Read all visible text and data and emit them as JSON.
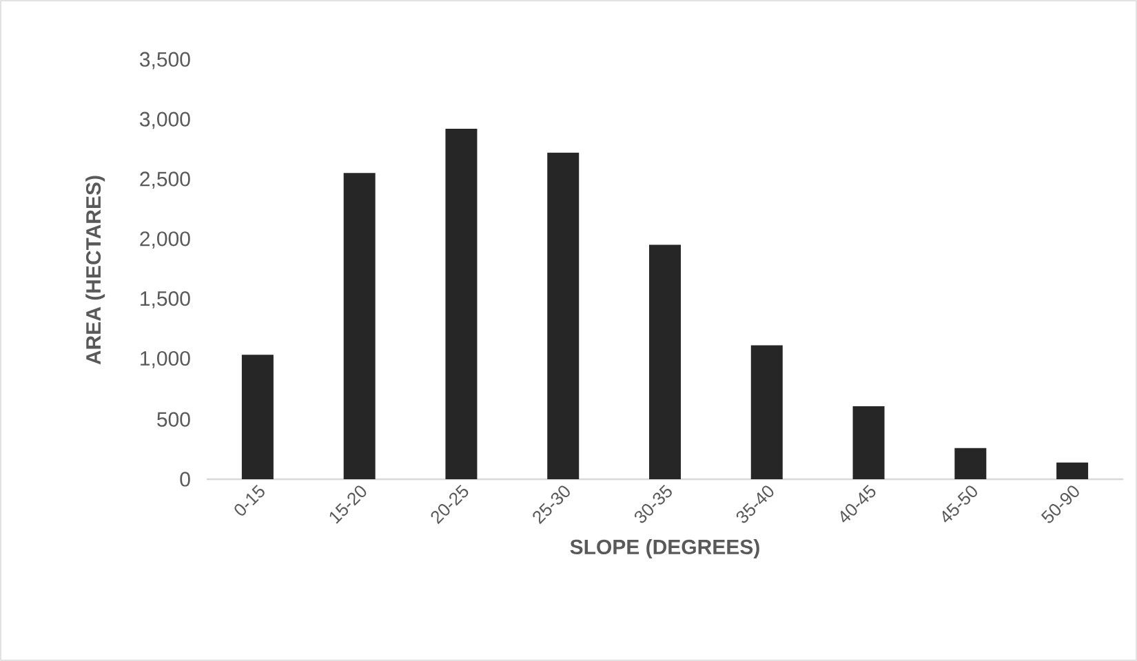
{
  "chart_data": {
    "type": "bar",
    "xlabel": "SLOPE (DEGREES)",
    "ylabel": "AREA (HECTARES)",
    "categories": [
      "0-15",
      "15-20",
      "20-25",
      "25-30",
      "30-35",
      "35-40",
      "40-45",
      "45-50",
      "50-90"
    ],
    "values": [
      1040,
      2560,
      2930,
      2730,
      1960,
      1120,
      610,
      260,
      140
    ],
    "color": "#262626",
    "ylim": [
      0,
      3500
    ],
    "yticks": [
      {
        "value": 0,
        "label": "0"
      },
      {
        "value": 500,
        "label": "500"
      },
      {
        "value": 1000,
        "label": "1,000"
      },
      {
        "value": 1500,
        "label": "1,500"
      },
      {
        "value": 2000,
        "label": "2,000"
      },
      {
        "value": 2500,
        "label": "2,500"
      },
      {
        "value": 3000,
        "label": "3,000"
      },
      {
        "value": 3500,
        "label": "3,500"
      }
    ]
  }
}
